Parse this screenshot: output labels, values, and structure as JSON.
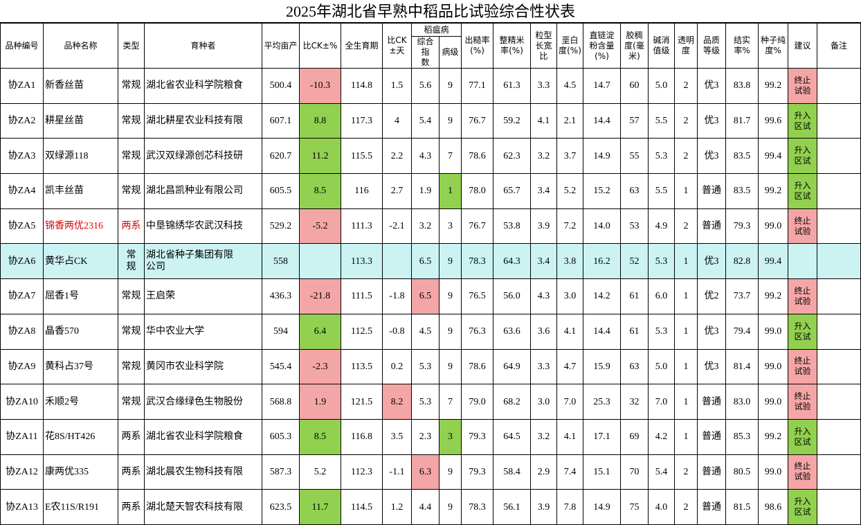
{
  "header": {
    "title": "2025年湖北省早熟中稻品比试验综合性状表",
    "top": [
      "品种编号",
      "品种名称",
      "类型",
      "育种者",
      "平均亩产",
      "比CK±%",
      "全生育期",
      "比CK\n±天",
      "稻瘟病",
      "出糙率\n(%)",
      "整精米\n率(%)",
      "粒型\n长宽\n比",
      "垩白\n度(%)",
      "直链淀\n粉含量\n(%)",
      "胶稠\n度(毫\n米)",
      "碱消\n值级",
      "透明\n度",
      "品质\n等级",
      "结实\n率%",
      "种子纯\n度%",
      "建议",
      "备注"
    ],
    "sub": [
      "综合指\n数",
      "病级"
    ]
  },
  "table": {
    "rows": [
      [
        "协ZA1",
        "新香丝苗",
        "常规",
        "湖北省农业科学院粮食",
        "500.4",
        "-10.3",
        "114.8",
        "1.5",
        "5.6",
        "9",
        "77.1",
        "61.3",
        "3.3",
        "4.5",
        "14.7",
        "60",
        "5.0",
        "2",
        "优3",
        "83.8",
        "99.2",
        "终止\n试验",
        null
      ],
      [
        "协ZA2",
        "耕星丝苗",
        "常规",
        "湖北耕星农业科技有限",
        "607.1",
        "8.8",
        "117.3",
        "4",
        "5.4",
        "9",
        "76.7",
        "59.2",
        "4.1",
        "2.1",
        "14.4",
        "57",
        "5.5",
        "2",
        "优3",
        "81.7",
        "99.6",
        "升入\n区试",
        null
      ],
      [
        "协ZA3",
        "双绿源118",
        "常规",
        "武汉双绿源创芯科技研",
        "620.7",
        "11.2",
        "115.5",
        "2.2",
        "4.3",
        "7",
        "78.6",
        "62.3",
        "3.2",
        "3.7",
        "14.9",
        "55",
        "5.3",
        "2",
        "优3",
        "83.5",
        "99.4",
        "升入\n区试",
        null
      ],
      [
        "协ZA4",
        "凯丰丝苗",
        "常规",
        "湖北昌凯种业有限公司",
        "605.5",
        "8.5",
        "116",
        "2.7",
        "1.9",
        "1",
        "78.0",
        "65.7",
        "3.4",
        "5.2",
        "15.2",
        "63",
        "5.5",
        "1",
        "普通",
        "83.5",
        "99.2",
        "升入\n区试",
        null
      ],
      [
        "协ZA5",
        "锦香两优2316",
        "两系",
        "中垦锦绣华农武汉科技",
        "529.2",
        "-5.2",
        "111.3",
        "-2.1",
        "3.2",
        "3",
        "76.7",
        "53.8",
        "3.9",
        "7.2",
        "14.0",
        "53",
        "4.9",
        "2",
        "普通",
        "79.3",
        "99.0",
        "终止\n试验",
        null
      ],
      [
        "协ZA6",
        "黄华占CK",
        "常\n规",
        "湖北省种子集团有限\n公司",
        "558",
        null,
        "113.3",
        null,
        "6.5",
        "9",
        "78.3",
        "64.3",
        "3.4",
        "3.8",
        "16.2",
        "52",
        "5.3",
        "1",
        "优3",
        "82.8",
        "99.4",
        null,
        null
      ],
      [
        "协ZA7",
        "屈香1号",
        "常规",
        "王启荣",
        "436.3",
        "-21.8",
        "111.5",
        "-1.8",
        "6.5",
        "9",
        "76.5",
        "56.0",
        "4.3",
        "3.0",
        "14.2",
        "61",
        "6.0",
        "1",
        "优2",
        "73.7",
        "99.2",
        "终止\n试验",
        null
      ],
      [
        "协ZA8",
        "晶香570",
        "常规",
        "华中农业大学",
        "594",
        "6.4",
        "112.5",
        "-0.8",
        "4.5",
        "9",
        "76.3",
        "63.6",
        "3.6",
        "4.1",
        "14.4",
        "61",
        "5.3",
        "1",
        "优3",
        "79.4",
        "99.0",
        "升入\n区试",
        null
      ],
      [
        "协ZA9",
        "黄科占37号",
        "常规",
        "黄冈市农业科学院",
        "545.4",
        "-2.3",
        "113.5",
        "0.2",
        "5.3",
        "9",
        "78.6",
        "64.9",
        "3.3",
        "4.7",
        "15.9",
        "63",
        "5.0",
        "1",
        "优3",
        "81.4",
        "99.0",
        "终止\n试验",
        null
      ],
      [
        "协ZA10",
        "禾顺2号",
        "常规",
        "武汉合缘绿色生物股份",
        "568.8",
        "1.9",
        "121.5",
        "8.2",
        "5.3",
        "7",
        "79.0",
        "68.2",
        "3.0",
        "7.0",
        "25.3",
        "32",
        "7.0",
        "1",
        "普通",
        "83.0",
        "99.0",
        "终止\n试验",
        null
      ],
      [
        "协ZA11",
        "花8S/HT426",
        "两系",
        "湖北省农业科学院粮食",
        "605.3",
        "8.5",
        "116.8",
        "3.5",
        "2.3",
        "3",
        "79.3",
        "64.5",
        "3.2",
        "4.1",
        "17.1",
        "69",
        "4.2",
        "1",
        "普通",
        "85.3",
        "99.2",
        "升入\n区试",
        null
      ],
      [
        "协ZA12",
        "康两优335",
        "两系",
        "湖北晨农生物科技有限",
        "587.3",
        "5.2",
        "112.3",
        "-1.1",
        "6.3",
        "9",
        "79.3",
        "58.4",
        "2.9",
        "7.4",
        "15.1",
        "70",
        "5.4",
        "2",
        "普通",
        "80.5",
        "99.0",
        "终止\n试验",
        null
      ],
      [
        "协ZA13",
        "E农11S/R191",
        "两系",
        "湖北楚天智农科技有限",
        "623.5",
        "11.7",
        "114.5",
        "1.2",
        "4.4",
        "9",
        "78.3",
        "56.1",
        "3.9",
        "7.8",
        "14.9",
        "75",
        "4.0",
        "2",
        "普通",
        "81.5",
        "98.6",
        "升入\n区试",
        null
      ]
    ]
  }
}
